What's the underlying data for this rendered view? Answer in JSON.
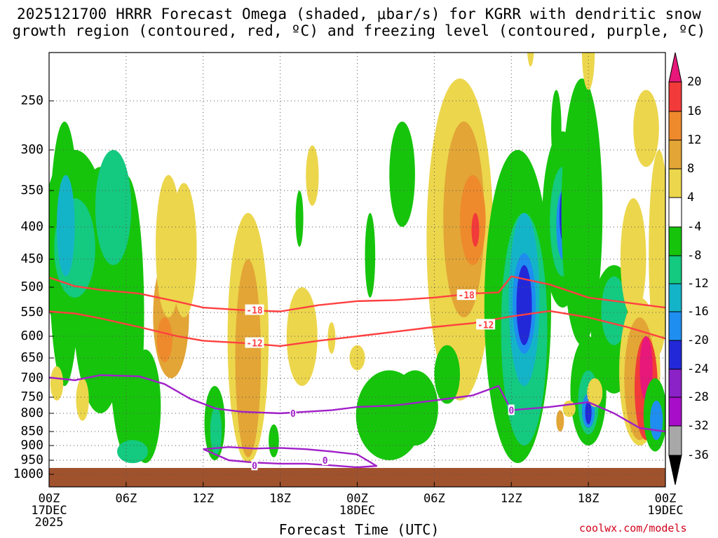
{
  "header": {
    "title_line1": "2025121700 HRRR Forecast Omega (shaded, μbar/s) for KGRR with dendritic snow",
    "title_line2": "growth region (contoured, red, ºC) and freezing level (contoured, purple, ºC)"
  },
  "footer": {
    "credit": "coolwx.com/models"
  },
  "chart_data": {
    "type": "heatmap",
    "title": "2025121700 HRRR Forecast Omega (shaded, μbar/s) for KGRR with dendritic snow growth region (contoured, red, ºC) and freezing level (contoured, purple, ºC)",
    "xlabel": "Forecast Time (UTC)",
    "ylabel": "",
    "x_range_hours": [
      0,
      48
    ],
    "y_range_hpa": [
      1000,
      200
    ],
    "y_ticks": [
      250,
      300,
      350,
      400,
      450,
      500,
      550,
      600,
      650,
      700,
      750,
      800,
      850,
      900,
      950,
      1000
    ],
    "x_ticks": [
      {
        "hour": 0,
        "lines": [
          "00Z",
          "17DEC",
          "2025"
        ]
      },
      {
        "hour": 6,
        "lines": [
          "06Z"
        ]
      },
      {
        "hour": 12,
        "lines": [
          "12Z"
        ]
      },
      {
        "hour": 18,
        "lines": [
          "18Z"
        ]
      },
      {
        "hour": 24,
        "lines": [
          "00Z",
          "18DEC"
        ]
      },
      {
        "hour": 30,
        "lines": [
          "06Z"
        ]
      },
      {
        "hour": 36,
        "lines": [
          "12Z"
        ]
      },
      {
        "hour": 42,
        "lines": [
          "18Z"
        ]
      },
      {
        "hour": 48,
        "lines": [
          "00Z",
          "19DEC"
        ]
      }
    ],
    "grid": true,
    "colorbar": {
      "labels": [
        20,
        16,
        12,
        8,
        4,
        -4,
        -8,
        -12,
        -16,
        -20,
        -24,
        -28,
        -32,
        -36
      ],
      "colors": {
        "above_20": "#e8177a",
        "16_20": "#f23a3a",
        "12_16": "#ee8a2c",
        "8_12": "#e2a536",
        "4_8": "#ecd64c",
        "m4_4": "#ffffff",
        "m8_m4": "#16c40c",
        "m12_m8": "#14c980",
        "m16_m12": "#14b4c8",
        "m20_m16": "#1e8ef0",
        "m24_m20": "#2228d8",
        "m28_m24": "#8a22c8",
        "m32_m28": "#a60ec8",
        "m36_m32": "#a8a8a8",
        "below_m36": "#000000"
      }
    },
    "series": [
      {
        "name": "-18 C isotherm",
        "color": "#ff4040",
        "label": "-18",
        "hours": [
          0,
          2,
          4,
          7,
          10,
          12,
          15,
          18,
          21,
          24,
          27,
          30,
          33,
          35,
          36,
          39,
          42,
          45,
          48
        ],
        "pressure_hpa": [
          482,
          498,
          505,
          512,
          528,
          540,
          545,
          548,
          535,
          527,
          525,
          520,
          512,
          510,
          480,
          495,
          520,
          530,
          540
        ]
      },
      {
        "name": "-12 C isotherm",
        "color": "#ff4040",
        "label": "-12",
        "hours": [
          0,
          2,
          4,
          7,
          10,
          12,
          15,
          18,
          21,
          24,
          27,
          30,
          33,
          36,
          39,
          42,
          45,
          48
        ],
        "pressure_hpa": [
          548,
          552,
          562,
          580,
          600,
          610,
          615,
          622,
          610,
          600,
          590,
          580,
          572,
          558,
          547,
          560,
          580,
          605
        ]
      },
      {
        "name": "0 C freezing level",
        "color": "#a020c8",
        "label": "0",
        "hours": [
          0,
          2,
          4,
          7,
          9,
          11,
          13,
          15,
          18,
          20,
          22,
          24,
          27,
          30,
          33,
          35,
          36,
          39,
          42,
          44,
          46,
          48
        ],
        "pressure_hpa": [
          698,
          705,
          692,
          695,
          715,
          755,
          785,
          795,
          800,
          795,
          790,
          780,
          775,
          760,
          745,
          720,
          790,
          780,
          765,
          800,
          840,
          850
        ]
      },
      {
        "name": "0 C low-level loop",
        "color": "#a020c8",
        "label": "0",
        "hours": [
          12,
          14,
          16,
          18,
          20,
          22,
          24,
          25.5,
          24,
          22,
          20,
          18,
          16,
          14,
          12
        ],
        "pressure_hpa": [
          912,
          905,
          910,
          908,
          912,
          920,
          930,
          970,
          975,
          968,
          962,
          962,
          958,
          950,
          912
        ]
      }
    ],
    "annotations": [
      {
        "text": "-18",
        "hour": 16,
        "pressure_hpa": 545
      },
      {
        "text": "-12",
        "hour": 16,
        "pressure_hpa": 615
      },
      {
        "text": "-18",
        "hour": 32.5,
        "pressure_hpa": 515
      },
      {
        "text": "-12",
        "hour": 34,
        "pressure_hpa": 575
      },
      {
        "text": "0",
        "hour": 19,
        "pressure_hpa": 800
      },
      {
        "text": "0",
        "hour": 36,
        "pressure_hpa": 790
      },
      {
        "text": "0",
        "hour": 21.5,
        "pressure_hpa": 950
      },
      {
        "text": "0",
        "hour": 16,
        "pressure_hpa": 968
      }
    ]
  }
}
